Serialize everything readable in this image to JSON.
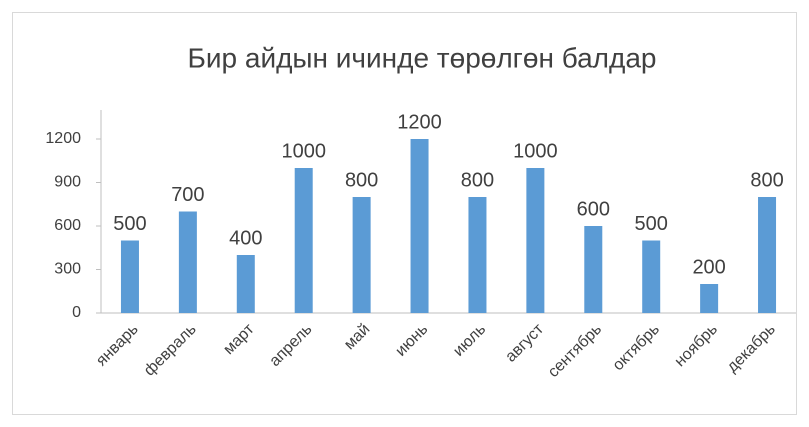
{
  "chart_data": {
    "type": "bar",
    "title": "Бир айдын ичинде төрөлгөн балдар",
    "categories": [
      "январь",
      "февраль",
      "март",
      "апрель",
      "май",
      "июнь",
      "июль",
      "август",
      "сентябрь",
      "октябрь",
      "ноябрь",
      "декабрь"
    ],
    "values": [
      500,
      700,
      400,
      1000,
      800,
      1200,
      800,
      1000,
      600,
      500,
      200,
      800
    ],
    "color": "#5b9bd5",
    "ylim": [
      0,
      1400
    ],
    "yticks": [
      0,
      300,
      600,
      900,
      1200
    ],
    "grid": false
  }
}
